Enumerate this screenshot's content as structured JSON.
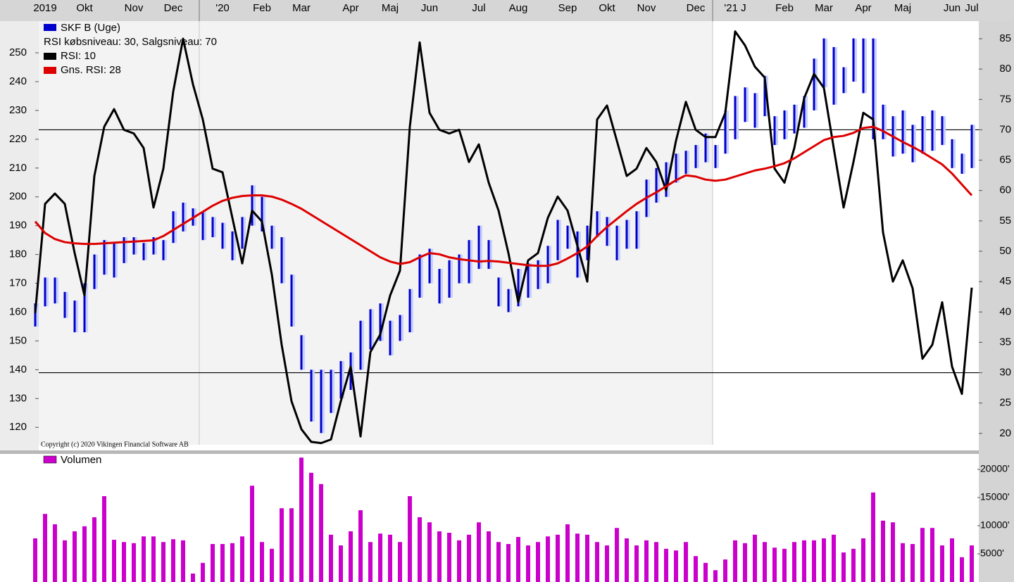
{
  "chart_data": [
    {
      "type": "ohlc",
      "categories": [
        null,
        "2019",
        null,
        null,
        null,
        "Okt",
        null,
        null,
        null,
        null,
        "Nov",
        null,
        null,
        null,
        "Dec",
        null,
        null,
        null,
        null,
        "'20",
        null,
        null,
        null,
        "Feb",
        null,
        null,
        null,
        "Mar",
        null,
        null,
        null,
        null,
        "Apr",
        null,
        null,
        null,
        "Maj",
        null,
        null,
        null,
        "Jun",
        null,
        null,
        null,
        null,
        "Jul",
        null,
        null,
        null,
        "Aug",
        null,
        null,
        null,
        null,
        "Sep",
        null,
        null,
        null,
        "Okt",
        null,
        null,
        null,
        "Nov",
        null,
        null,
        null,
        null,
        "Dec",
        null,
        null,
        null,
        "'21 J",
        null,
        null,
        null,
        null,
        "Feb",
        null,
        null,
        null,
        "Mar",
        null,
        null,
        null,
        "Apr",
        null,
        null,
        null,
        "Maj",
        null,
        null,
        null,
        null,
        "Jun",
        null,
        "Jul"
      ],
      "series": [
        {
          "name": "SKF B (Uge)",
          "color": "#0000cc",
          "high": [
            163,
            172,
            172,
            167,
            164,
            170,
            180,
            185,
            184,
            186,
            186,
            184,
            186,
            185,
            195,
            198,
            196,
            195,
            193,
            191,
            188,
            193,
            204,
            200,
            190,
            186,
            173,
            152,
            140,
            140,
            140,
            143,
            146,
            157,
            161,
            163,
            157,
            159,
            168,
            180,
            182,
            175,
            178,
            180,
            185,
            190,
            185,
            172,
            168,
            175,
            177,
            178,
            183,
            192,
            190,
            188,
            190,
            195,
            193,
            190,
            192,
            195,
            206,
            210,
            212,
            215,
            216,
            218,
            222,
            218,
            230,
            235,
            238,
            236,
            242,
            228,
            230,
            232,
            235,
            248,
            255,
            252,
            245,
            255,
            255,
            255,
            232,
            228,
            230,
            225,
            228,
            230,
            228,
            220,
            215,
            225
          ],
          "low": [
            155,
            162,
            163,
            158,
            153,
            153,
            168,
            173,
            172,
            177,
            180,
            178,
            180,
            178,
            184,
            188,
            190,
            185,
            186,
            182,
            178,
            182,
            190,
            188,
            182,
            170,
            155,
            140,
            122,
            118,
            125,
            130,
            133,
            140,
            147,
            150,
            145,
            150,
            153,
            165,
            170,
            163,
            165,
            170,
            170,
            175,
            175,
            162,
            160,
            162,
            165,
            168,
            170,
            178,
            182,
            172,
            178,
            186,
            183,
            178,
            182,
            182,
            193,
            198,
            200,
            205,
            208,
            210,
            212,
            210,
            215,
            220,
            226,
            224,
            228,
            218,
            220,
            222,
            224,
            230,
            238,
            232,
            236,
            240,
            236,
            220,
            220,
            214,
            215,
            212,
            215,
            216,
            218,
            210,
            208,
            210
          ]
        },
        {
          "name": "RSI: 10",
          "color": "#000000",
          "axis": "y2",
          "values": [
            39.8,
            57.8,
            59.5,
            57.8,
            49.7,
            42.7,
            62.4,
            70.5,
            73.4,
            70,
            69.4,
            67,
            57.2,
            63.6,
            76.3,
            85,
            77.5,
            71.7,
            63.6,
            63,
            55.5,
            48,
            56.7,
            54.9,
            46.2,
            34.6,
            25.3,
            20.7,
            18.6,
            18.4,
            19,
            25.3,
            31,
            19.5,
            33.4,
            36.3,
            42.7,
            46.8,
            70.5,
            84.4,
            72.8,
            70,
            69.4,
            70,
            64.7,
            67.6,
            61.3,
            56.7,
            49.7,
            41.6,
            48.5,
            49.7,
            55.5,
            59,
            56.7,
            50.9,
            45,
            71.7,
            74,
            68.2,
            62.4,
            63.6,
            67,
            64.7,
            60,
            68.2,
            74.6,
            70,
            68.8,
            68.8,
            72.8,
            86.2,
            83.9,
            80.4,
            78.6,
            63.6,
            61.3,
            67,
            75.2,
            79.2,
            76.9,
            67,
            57.2,
            64.7,
            72.8,
            71.7,
            53.1,
            45,
            48.5,
            43.9,
            32.3,
            34.6,
            41.6,
            31,
            26.5,
            44
          ]
        },
        {
          "name": "Gns. RSI: 28",
          "color": "#dd0000",
          "axis": "y2",
          "values": [
            54.9,
            53,
            52,
            51.5,
            51.3,
            51.2,
            51.2,
            51.3,
            51.4,
            51.5,
            51.6,
            51.7,
            51.8,
            52.5,
            53.5,
            54.5,
            55.5,
            56.5,
            57.5,
            58.3,
            58.8,
            59.1,
            59.2,
            59.2,
            59,
            58.5,
            57.8,
            57,
            56,
            55,
            54,
            53,
            52,
            51,
            50,
            49,
            48.3,
            47.9,
            48.2,
            49,
            49.7,
            49.5,
            49,
            48.7,
            48.5,
            48.3,
            48.4,
            48.3,
            48.1,
            47.9,
            47.7,
            47.6,
            47.6,
            48,
            48.8,
            49.7,
            50.8,
            52.5,
            54,
            55.3,
            56.6,
            57.8,
            58.8,
            59.7,
            60.7,
            61.7,
            62.5,
            62.3,
            61.8,
            61.6,
            61.8,
            62.3,
            62.8,
            63.3,
            63.6,
            64,
            64.5,
            65.3,
            66.3,
            67.3,
            68.3,
            68.8,
            69,
            69.5,
            70.3,
            70.5,
            69.8,
            68.9,
            68,
            67.2,
            66.3,
            65.3,
            64.3,
            62.8,
            61,
            59.2
          ]
        }
      ],
      "legend_note": "RSI købsniveau: 30, Salgsniveau: 70",
      "levels": [
        30,
        70
      ],
      "ylim": [
        112,
        261
      ],
      "yticks": [
        120,
        130,
        140,
        150,
        160,
        170,
        180,
        190,
        200,
        210,
        220,
        230,
        240,
        250
      ],
      "y2lim": [
        17.2,
        87.9
      ],
      "y2ticks": [
        20,
        25,
        30,
        35,
        40,
        45,
        50,
        55,
        60,
        65,
        70,
        75,
        80,
        85
      ],
      "copyright": "Copyright (c) 2020 Vikingen Financial Software AB"
    },
    {
      "type": "bar",
      "series": [
        {
          "name": "Volumen",
          "color": "#cc00cc",
          "values": [
            7750,
            12100,
            10250,
            7400,
            9000,
            9900,
            11500,
            15250,
            7500,
            7100,
            6900,
            8100,
            8100,
            7100,
            7600,
            7400,
            1500,
            3400,
            6750,
            6750,
            6900,
            8100,
            17100,
            7100,
            5900,
            13100,
            13100,
            22100,
            19400,
            17400,
            8400,
            6500,
            9000,
            12750,
            7100,
            8600,
            8400,
            7100,
            15250,
            11500,
            10600,
            9000,
            8750,
            7400,
            8400,
            10600,
            9000,
            7100,
            6750,
            8000,
            6500,
            7100,
            8100,
            8400,
            10250,
            8600,
            8400,
            7100,
            6500,
            9600,
            7750,
            6500,
            7400,
            7100,
            5900,
            5600,
            7100,
            4600,
            3400,
            2100,
            4000,
            7400,
            6900,
            8400,
            7100,
            6100,
            5900,
            7100,
            7400,
            7400,
            7750,
            8400,
            5250,
            5900,
            7750,
            15900,
            10900,
            10600,
            6900,
            6750,
            9600,
            9600,
            6500,
            7750,
            4400,
            6500
          ]
        }
      ],
      "ylim": [
        0,
        22750
      ],
      "yticks": [
        {
          "value": 5000,
          "label": "5000'"
        },
        {
          "value": 10000,
          "label": "10000'"
        },
        {
          "value": 15000,
          "label": "15000'"
        },
        {
          "value": 20000,
          "label": "20000'"
        }
      ]
    }
  ]
}
